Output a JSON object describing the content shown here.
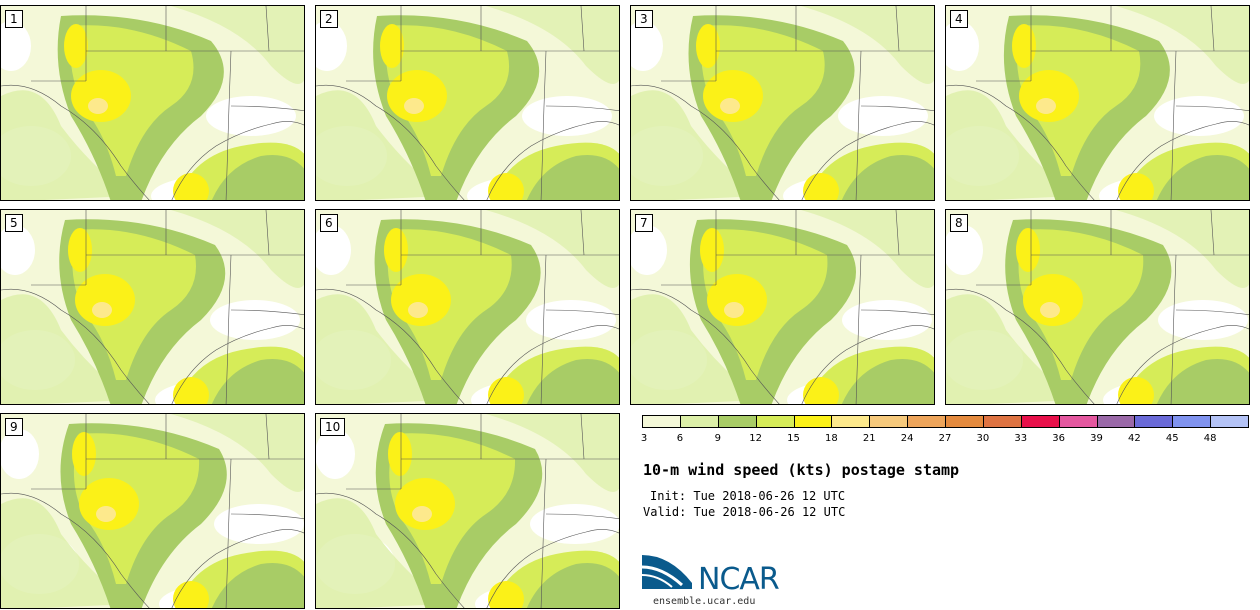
{
  "panels": [
    {
      "number": "1",
      "shift": 0
    },
    {
      "number": "2",
      "shift": 1
    },
    {
      "number": "3",
      "shift": 2
    },
    {
      "number": "4",
      "shift": 3
    },
    {
      "number": "5",
      "shift": 4
    },
    {
      "number": "6",
      "shift": 5
    },
    {
      "number": "7",
      "shift": 6
    },
    {
      "number": "8",
      "shift": 7
    },
    {
      "number": "9",
      "shift": 8
    },
    {
      "number": "10",
      "shift": 9
    }
  ],
  "colorbar": {
    "colors": [
      "#f4f8d8",
      "#dcefa8",
      "#a8cc66",
      "#d6ec58",
      "#fbf118",
      "#fde98c",
      "#f6c97c",
      "#eda45a",
      "#e48a3e",
      "#de7342",
      "#e8104a",
      "#e4579f",
      "#9a68a8",
      "#6a6ad8",
      "#8093ef",
      "#b4c3f6"
    ],
    "ticks": [
      "3",
      "6",
      "9",
      "12",
      "15",
      "18",
      "21",
      "24",
      "27",
      "30",
      "33",
      "36",
      "39",
      "42",
      "45",
      "48"
    ]
  },
  "title": "10-m wind speed (kts) postage stamp",
  "init": "Init: Tue 2018-06-26 12 UTC",
  "valid": "Valid: Tue 2018-06-26 12 UTC",
  "logo": {
    "text": "NCAR",
    "url": "ensemble.ucar.edu",
    "color": "#0a5a8c"
  }
}
